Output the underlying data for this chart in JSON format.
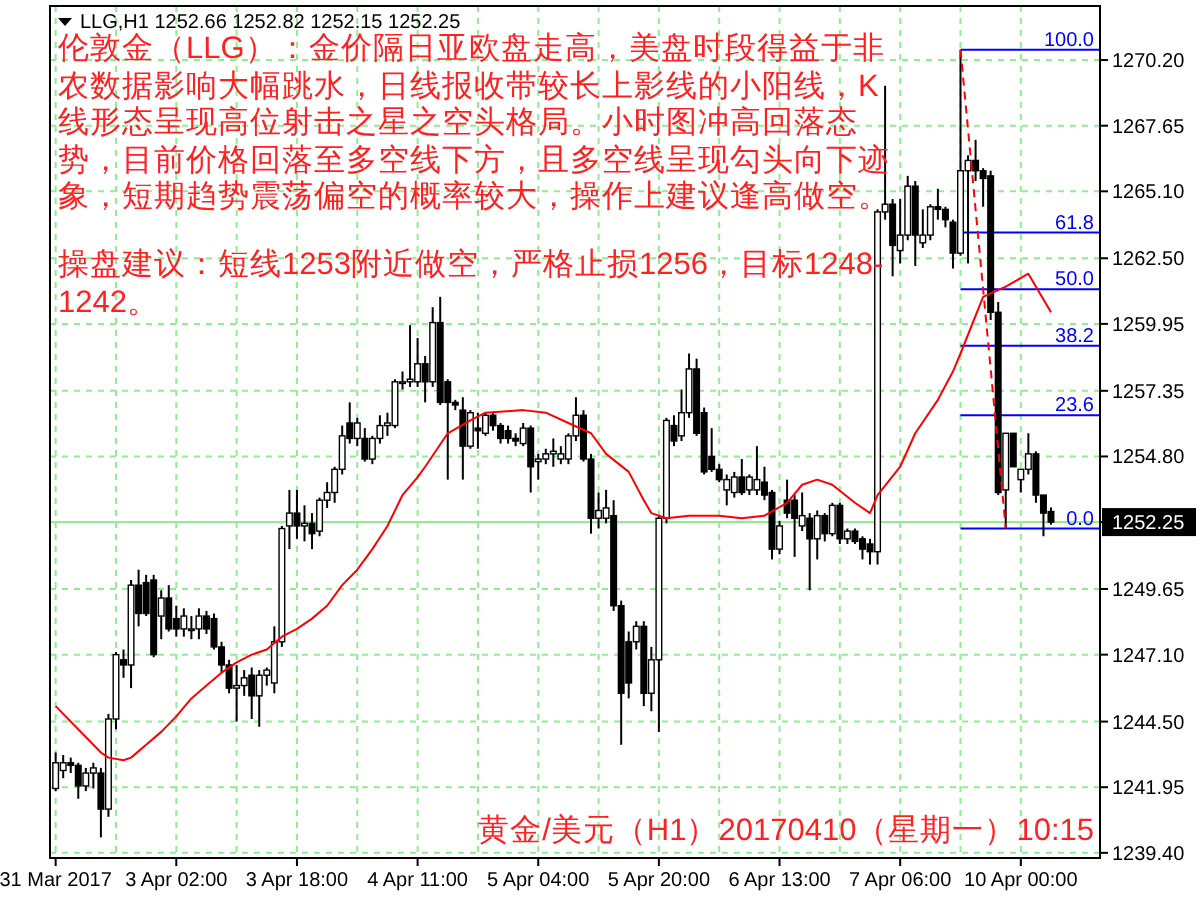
{
  "chart_data": {
    "type": "candlestick",
    "title": "LLG,H1 1252.66 1252.82 1252.15 1252.25",
    "annotations": [
      "伦敦金（LLG）：金价隔日亚欧盘走高，美盘时段得益于非农数据影响大幅跳水，日线报收带较长上影线的小阳线，K线形态呈现高位射击之星之空头格局。小时图冲高回落态势，目前价格回落至多空线下方，且多空线呈现勾头向下迹象，短期趋势震荡偏空的概率较大，操作上建议逢高做空。",
      "操盘建议：短线1253附近做空，严格止损1256，目标1248-1242。",
      "黄金/美元（H1）20170410（星期一）10:15",
      {
        "text": "100.0",
        "y": 1270.6
      },
      {
        "text": "61.8",
        "y": 1263.5
      },
      {
        "text": "50.0",
        "y": 1261.3
      },
      {
        "text": "38.2",
        "y": 1259.1
      },
      {
        "text": "23.6",
        "y": 1256.4
      },
      {
        "text": "0.0",
        "y": 1252.0
      }
    ],
    "categories": [
      "31 Mar 2017",
      null,
      null,
      null,
      null,
      null,
      null,
      null,
      null,
      null,
      null,
      null,
      null,
      null,
      null,
      null,
      "3 Apr 02:00",
      null,
      null,
      null,
      null,
      null,
      null,
      null,
      null,
      null,
      null,
      null,
      null,
      null,
      null,
      null,
      "3 Apr 18:00",
      null,
      null,
      null,
      null,
      null,
      null,
      null,
      null,
      null,
      null,
      null,
      null,
      null,
      null,
      null,
      "4 Apr 11:00",
      null,
      null,
      null,
      null,
      null,
      null,
      null,
      null,
      null,
      null,
      null,
      null,
      null,
      null,
      null,
      "5 Apr 04:00",
      null,
      null,
      null,
      null,
      null,
      null,
      null,
      null,
      null,
      null,
      null,
      null,
      null,
      null,
      null,
      "5 Apr 20:00",
      null,
      null,
      null,
      null,
      null,
      null,
      null,
      null,
      null,
      null,
      null,
      null,
      null,
      null,
      null,
      "6 Apr 13:00",
      null,
      null,
      null,
      null,
      null,
      null,
      null,
      null,
      null,
      null,
      null,
      null,
      null,
      null,
      null,
      "7 Apr 06:00",
      null,
      null,
      null,
      null,
      null,
      null,
      null,
      null,
      null,
      null,
      null,
      null,
      null,
      null,
      null,
      "10 Apr 00:00",
      null,
      null,
      null,
      null
    ],
    "ohlc": [
      [
        1241.9,
        1243.3,
        1241.8,
        1242.9
      ],
      [
        1242.6,
        1243.2,
        1242.3,
        1242.9
      ],
      [
        1242.9,
        1243.1,
        1242.5,
        1242.8
      ],
      [
        1242.8,
        1242.9,
        1241.5,
        1242.0
      ],
      [
        1242.0,
        1242.7,
        1241.8,
        1242.5
      ],
      [
        1242.5,
        1242.9,
        1241.9,
        1242.7
      ],
      [
        1242.5,
        1242.7,
        1240.0,
        1241.1
      ],
      [
        1241.1,
        1244.8,
        1240.8,
        1244.6
      ],
      [
        1244.6,
        1247.2,
        1244.2,
        1247.1
      ],
      [
        1246.9,
        1247.3,
        1246.2,
        1246.7
      ],
      [
        1246.7,
        1250.0,
        1245.8,
        1249.8
      ],
      [
        1249.8,
        1250.4,
        1248.2,
        1248.7
      ],
      [
        1249.9,
        1250.2,
        1248.6,
        1248.7
      ],
      [
        1250.0,
        1250.2,
        1247.0,
        1247.1
      ],
      [
        1248.6,
        1249.6,
        1247.7,
        1249.3
      ],
      [
        1249.3,
        1249.8,
        1248.0,
        1248.1
      ],
      [
        1248.5,
        1249.0,
        1247.8,
        1248.1
      ],
      [
        1248.1,
        1248.9,
        1247.8,
        1248.6
      ],
      [
        1248.1,
        1248.6,
        1247.7,
        1248.1
      ],
      [
        1248.1,
        1248.9,
        1247.7,
        1248.6
      ],
      [
        1248.6,
        1248.8,
        1247.9,
        1248.1
      ],
      [
        1248.5,
        1248.7,
        1247.3,
        1247.4
      ],
      [
        1247.4,
        1247.6,
        1246.4,
        1246.7
      ],
      [
        1246.7,
        1246.9,
        1245.6,
        1245.8
      ],
      [
        1245.8,
        1246.7,
        1244.5,
        1245.9
      ],
      [
        1245.9,
        1246.5,
        1245.5,
        1246.2
      ],
      [
        1246.3,
        1246.6,
        1244.6,
        1245.5
      ],
      [
        1245.5,
        1246.5,
        1244.3,
        1246.3
      ],
      [
        1246.3,
        1246.6,
        1245.9,
        1246.5
      ],
      [
        1246.0,
        1248.2,
        1245.6,
        1247.6
      ],
      [
        1247.6,
        1252.1,
        1247.4,
        1252.0
      ],
      [
        1252.1,
        1253.5,
        1251.2,
        1252.6
      ],
      [
        1252.6,
        1253.5,
        1251.6,
        1252.1
      ],
      [
        1252.1,
        1252.9,
        1251.5,
        1252.2
      ],
      [
        1252.2,
        1252.6,
        1251.2,
        1251.8
      ],
      [
        1251.9,
        1253.2,
        1251.7,
        1253.1
      ],
      [
        1253.1,
        1253.8,
        1252.8,
        1253.4
      ],
      [
        1253.4,
        1254.4,
        1253.0,
        1254.3
      ],
      [
        1254.3,
        1256.0,
        1254.1,
        1255.6
      ],
      [
        1256.1,
        1256.9,
        1255.3,
        1255.5
      ],
      [
        1255.5,
        1256.3,
        1255.2,
        1256.1
      ],
      [
        1255.5,
        1255.9,
        1254.6,
        1254.7
      ],
      [
        1254.7,
        1255.6,
        1254.5,
        1255.5
      ],
      [
        1255.5,
        1256.4,
        1255.3,
        1256.0
      ],
      [
        1256.0,
        1256.5,
        1255.6,
        1256.1
      ],
      [
        1256.0,
        1257.8,
        1255.9,
        1257.7
      ],
      [
        1257.7,
        1258.1,
        1257.4,
        1257.7
      ],
      [
        1257.7,
        1259.9,
        1257.5,
        1257.8
      ],
      [
        1257.7,
        1259.4,
        1257.5,
        1258.4
      ],
      [
        1258.4,
        1258.7,
        1256.9,
        1257.7
      ],
      [
        1257.7,
        1260.6,
        1257.5,
        1260.0
      ],
      [
        1260.0,
        1261.0,
        1256.8,
        1256.9
      ],
      [
        1257.7,
        1257.8,
        1253.9,
        1256.9
      ],
      [
        1256.9,
        1257.0,
        1256.6,
        1256.8
      ],
      [
        1256.6,
        1257.1,
        1253.9,
        1255.2
      ],
      [
        1255.2,
        1256.6,
        1255.1,
        1256.5
      ],
      [
        1255.9,
        1256.5,
        1255.1,
        1255.8
      ],
      [
        1255.7,
        1256.5,
        1255.6,
        1256.4
      ],
      [
        1256.4,
        1256.5,
        1255.8,
        1256.0
      ],
      [
        1256.0,
        1256.1,
        1255.3,
        1255.5
      ],
      [
        1255.8,
        1256.0,
        1255.3,
        1255.5
      ],
      [
        1255.5,
        1255.7,
        1255.2,
        1255.4
      ],
      [
        1255.3,
        1256.1,
        1255.2,
        1255.9
      ],
      [
        1255.9,
        1256.0,
        1253.4,
        1254.4
      ],
      [
        1254.6,
        1254.9,
        1253.9,
        1254.7
      ],
      [
        1254.7,
        1255.1,
        1254.5,
        1254.9
      ],
      [
        1254.9,
        1255.5,
        1254.4,
        1255.0
      ],
      [
        1254.7,
        1255.2,
        1254.5,
        1254.9
      ],
      [
        1254.7,
        1255.7,
        1254.5,
        1255.6
      ],
      [
        1255.6,
        1257.1,
        1255.4,
        1256.4
      ],
      [
        1256.4,
        1256.6,
        1254.6,
        1254.7
      ],
      [
        1254.7,
        1254.9,
        1251.8,
        1252.4
      ],
      [
        1252.4,
        1253.4,
        1252.0,
        1252.7
      ],
      [
        1252.4,
        1253.5,
        1252.2,
        1252.8
      ],
      [
        1252.5,
        1253.1,
        1248.8,
        1249.0
      ],
      [
        1249.0,
        1249.2,
        1243.6,
        1245.6
      ],
      [
        1247.6,
        1248.0,
        1245.4,
        1246.0
      ],
      [
        1247.6,
        1248.4,
        1247.3,
        1248.2
      ],
      [
        1248.2,
        1248.4,
        1245.1,
        1245.6
      ],
      [
        1245.6,
        1247.4,
        1244.9,
        1246.9
      ],
      [
        1246.9,
        1252.5,
        1244.1,
        1252.4
      ],
      [
        1252.4,
        1256.3,
        1252.2,
        1256.2
      ],
      [
        1256.0,
        1256.4,
        1255.2,
        1255.4
      ],
      [
        1255.6,
        1257.4,
        1255.4,
        1256.5
      ],
      [
        1256.5,
        1258.8,
        1256.3,
        1258.2
      ],
      [
        1258.2,
        1258.6,
        1255.6,
        1255.7
      ],
      [
        1256.5,
        1256.7,
        1254.1,
        1254.2
      ],
      [
        1254.8,
        1255.9,
        1254.2,
        1254.3
      ],
      [
        1254.3,
        1254.5,
        1253.8,
        1253.9
      ],
      [
        1253.5,
        1254.1,
        1252.9,
        1253.9
      ],
      [
        1253.4,
        1254.2,
        1253.2,
        1254.0
      ],
      [
        1254.0,
        1254.7,
        1253.3,
        1253.4
      ],
      [
        1253.5,
        1254.1,
        1253.3,
        1254.0
      ],
      [
        1253.5,
        1255.2,
        1253.3,
        1253.9
      ],
      [
        1253.8,
        1254.4,
        1253.1,
        1253.3
      ],
      [
        1253.4,
        1253.5,
        1250.8,
        1251.2
      ],
      [
        1251.2,
        1252.3,
        1251.0,
        1252.1
      ],
      [
        1253.1,
        1253.9,
        1252.4,
        1252.6
      ],
      [
        1253.1,
        1253.3,
        1250.9,
        1252.4
      ],
      [
        1252.1,
        1253.4,
        1251.9,
        1252.5
      ],
      [
        1252.4,
        1252.6,
        1249.6,
        1251.6
      ],
      [
        1251.6,
        1252.7,
        1250.8,
        1252.5
      ],
      [
        1252.5,
        1252.6,
        1251.5,
        1251.8
      ],
      [
        1251.8,
        1253.0,
        1251.7,
        1252.9
      ],
      [
        1252.9,
        1253.0,
        1251.4,
        1251.6
      ],
      [
        1251.6,
        1252.0,
        1251.4,
        1251.9
      ],
      [
        1251.9,
        1252.0,
        1251.4,
        1251.5
      ],
      [
        1251.6,
        1251.7,
        1250.8,
        1251.2
      ],
      [
        1251.4,
        1251.6,
        1250.6,
        1251.1
      ],
      [
        1251.1,
        1264.4,
        1250.6,
        1264.3
      ],
      [
        1264.3,
        1269.2,
        1264.0,
        1264.6
      ],
      [
        1264.6,
        1264.8,
        1261.8,
        1263.0
      ],
      [
        1262.8,
        1264.8,
        1262.3,
        1263.4
      ],
      [
        1263.4,
        1265.7,
        1263.2,
        1265.3
      ],
      [
        1265.3,
        1265.5,
        1262.2,
        1263.4
      ],
      [
        1263.1,
        1264.4,
        1262.9,
        1263.4
      ],
      [
        1263.4,
        1264.6,
        1263.2,
        1264.5
      ],
      [
        1264.5,
        1265.2,
        1264.0,
        1264.4
      ],
      [
        1264.4,
        1264.5,
        1263.7,
        1264.0
      ],
      [
        1263.9,
        1264.0,
        1262.1,
        1262.7
      ],
      [
        1262.7,
        1270.6,
        1262.6,
        1265.9
      ],
      [
        1265.9,
        1266.5,
        1262.3,
        1266.3
      ],
      [
        1266.3,
        1267.1,
        1265.5,
        1265.9
      ],
      [
        1265.9,
        1266.0,
        1264.5,
        1265.6
      ],
      [
        1265.7,
        1265.9,
        1260.1,
        1260.4
      ],
      [
        1260.4,
        1260.8,
        1253.3,
        1253.4
      ],
      [
        1253.5,
        1255.7,
        1252.0,
        1255.7
      ],
      [
        1255.7,
        1255.7,
        1254.4,
        1254.4
      ],
      [
        1253.9,
        1254.3,
        1253.4,
        1254.3
      ],
      [
        1254.3,
        1255.7,
        1254.1,
        1254.9
      ],
      [
        1254.9,
        1255.0,
        1253.0,
        1253.3
      ],
      [
        1253.3,
        1253.3,
        1251.7,
        1252.6
      ],
      [
        1252.66,
        1252.82,
        1252.15,
        1252.25
      ]
    ],
    "series": [
      {
        "type": "line",
        "color": "#ff0000",
        "values": [
          1245.1,
          null,
          null,
          null,
          null,
          null,
          1243.3,
          1243.1,
          null,
          1243.0,
          1243.1,
          null,
          1243.6,
          null,
          1244.1,
          null,
          1244.7,
          null,
          1245.4,
          null,
          1245.9,
          null,
          1246.4,
          null,
          1246.8,
          null,
          1247.1,
          null,
          1247.3,
          null,
          1247.8,
          null,
          1248.1,
          null,
          1248.5,
          null,
          1249.0,
          null,
          1249.8,
          null,
          1250.4,
          null,
          1251.2,
          null,
          1252.1,
          null,
          1253.3,
          null,
          1254.0,
          1254.4,
          null,
          null,
          1255.7,
          null,
          null,
          1256.2,
          null,
          1256.5,
          null,
          null,
          null,
          null,
          1256.6,
          null,
          null,
          1256.5,
          null,
          null,
          1256.1,
          null,
          null,
          1255.7,
          null,
          1254.9,
          null,
          null,
          1254.2,
          null,
          1253.1,
          1252.6,
          null,
          1252.4,
          null,
          null,
          1252.5,
          null,
          null,
          null,
          1252.5,
          null,
          null,
          1252.4,
          null,
          null,
          1252.5,
          null,
          null,
          1253.0,
          null,
          1253.7,
          null,
          1253.9,
          null,
          1253.7,
          null,
          null,
          1253.0,
          null,
          1252.6,
          1253.3,
          null,
          null,
          1254.4,
          null,
          1255.7,
          null,
          null,
          1257.0,
          null,
          1258.1,
          1258.8,
          null,
          null,
          1261.0,
          null,
          null,
          1261.4,
          null,
          null,
          1261.9,
          null,
          null,
          1260.4
        ]
      },
      {
        "type": "line",
        "color": "#ff0000",
        "line_style": "dashed",
        "values": [
          null,
          null,
          null,
          null,
          null,
          null,
          null,
          null,
          null,
          null,
          null,
          null,
          null,
          null,
          null,
          null,
          null,
          null,
          null,
          null,
          null,
          null,
          null,
          null,
          null,
          null,
          null,
          null,
          null,
          null,
          null,
          null,
          null,
          null,
          null,
          null,
          null,
          null,
          null,
          null,
          null,
          null,
          null,
          null,
          null,
          null,
          null,
          null,
          null,
          null,
          null,
          null,
          null,
          null,
          null,
          null,
          null,
          null,
          null,
          null,
          null,
          null,
          null,
          null,
          null,
          null,
          null,
          null,
          null,
          null,
          null,
          null,
          null,
          null,
          null,
          null,
          null,
          null,
          null,
          null,
          null,
          null,
          null,
          null,
          null,
          null,
          null,
          null,
          null,
          null,
          null,
          null,
          null,
          null,
          null,
          null,
          null,
          null,
          null,
          null,
          null,
          null,
          null,
          null,
          null,
          null,
          null,
          null,
          null,
          null,
          null,
          null,
          null,
          null,
          null,
          null,
          null,
          null,
          null,
          null,
          1270.6,
          null,
          null,
          null,
          null,
          null,
          1252.0,
          null,
          null,
          null,
          null,
          null,
          null
        ]
      }
    ],
    "ylim": [
      1239.2,
      1272.3
    ],
    "yticks": [
      {
        "value": 1239.4,
        "label": "1239.40"
      },
      1241.95,
      {
        "value": 1244.5,
        "label": "1244.50"
      },
      {
        "value": 1247.1,
        "label": "1247.10"
      },
      1249.65,
      1252.25,
      {
        "value": 1254.8,
        "label": "1254.80"
      },
      1257.35,
      1259.95,
      {
        "value": 1262.5,
        "label": "1262.50"
      },
      {
        "value": 1265.1,
        "label": "1265.10"
      },
      1267.65,
      {
        "value": 1270.2,
        "label": "1270.20"
      }
    ],
    "ref_lines": [
      {
        "axis": "y",
        "value": 1252.25,
        "color": "#90ee90"
      },
      {
        "axis": "y",
        "value": 1270.6,
        "color": "#0000ff"
      },
      {
        "axis": "y",
        "value": 1263.5,
        "color": "#0000ff"
      },
      {
        "axis": "y",
        "value": 1261.3,
        "color": "#0000ff"
      },
      {
        "axis": "y",
        "value": 1259.1,
        "color": "#0000ff"
      },
      {
        "axis": "y",
        "value": 1256.4,
        "color": "#0000ff"
      },
      {
        "axis": "y",
        "value": 1252.0,
        "color": "#0000ff"
      }
    ],
    "grid": true
  }
}
